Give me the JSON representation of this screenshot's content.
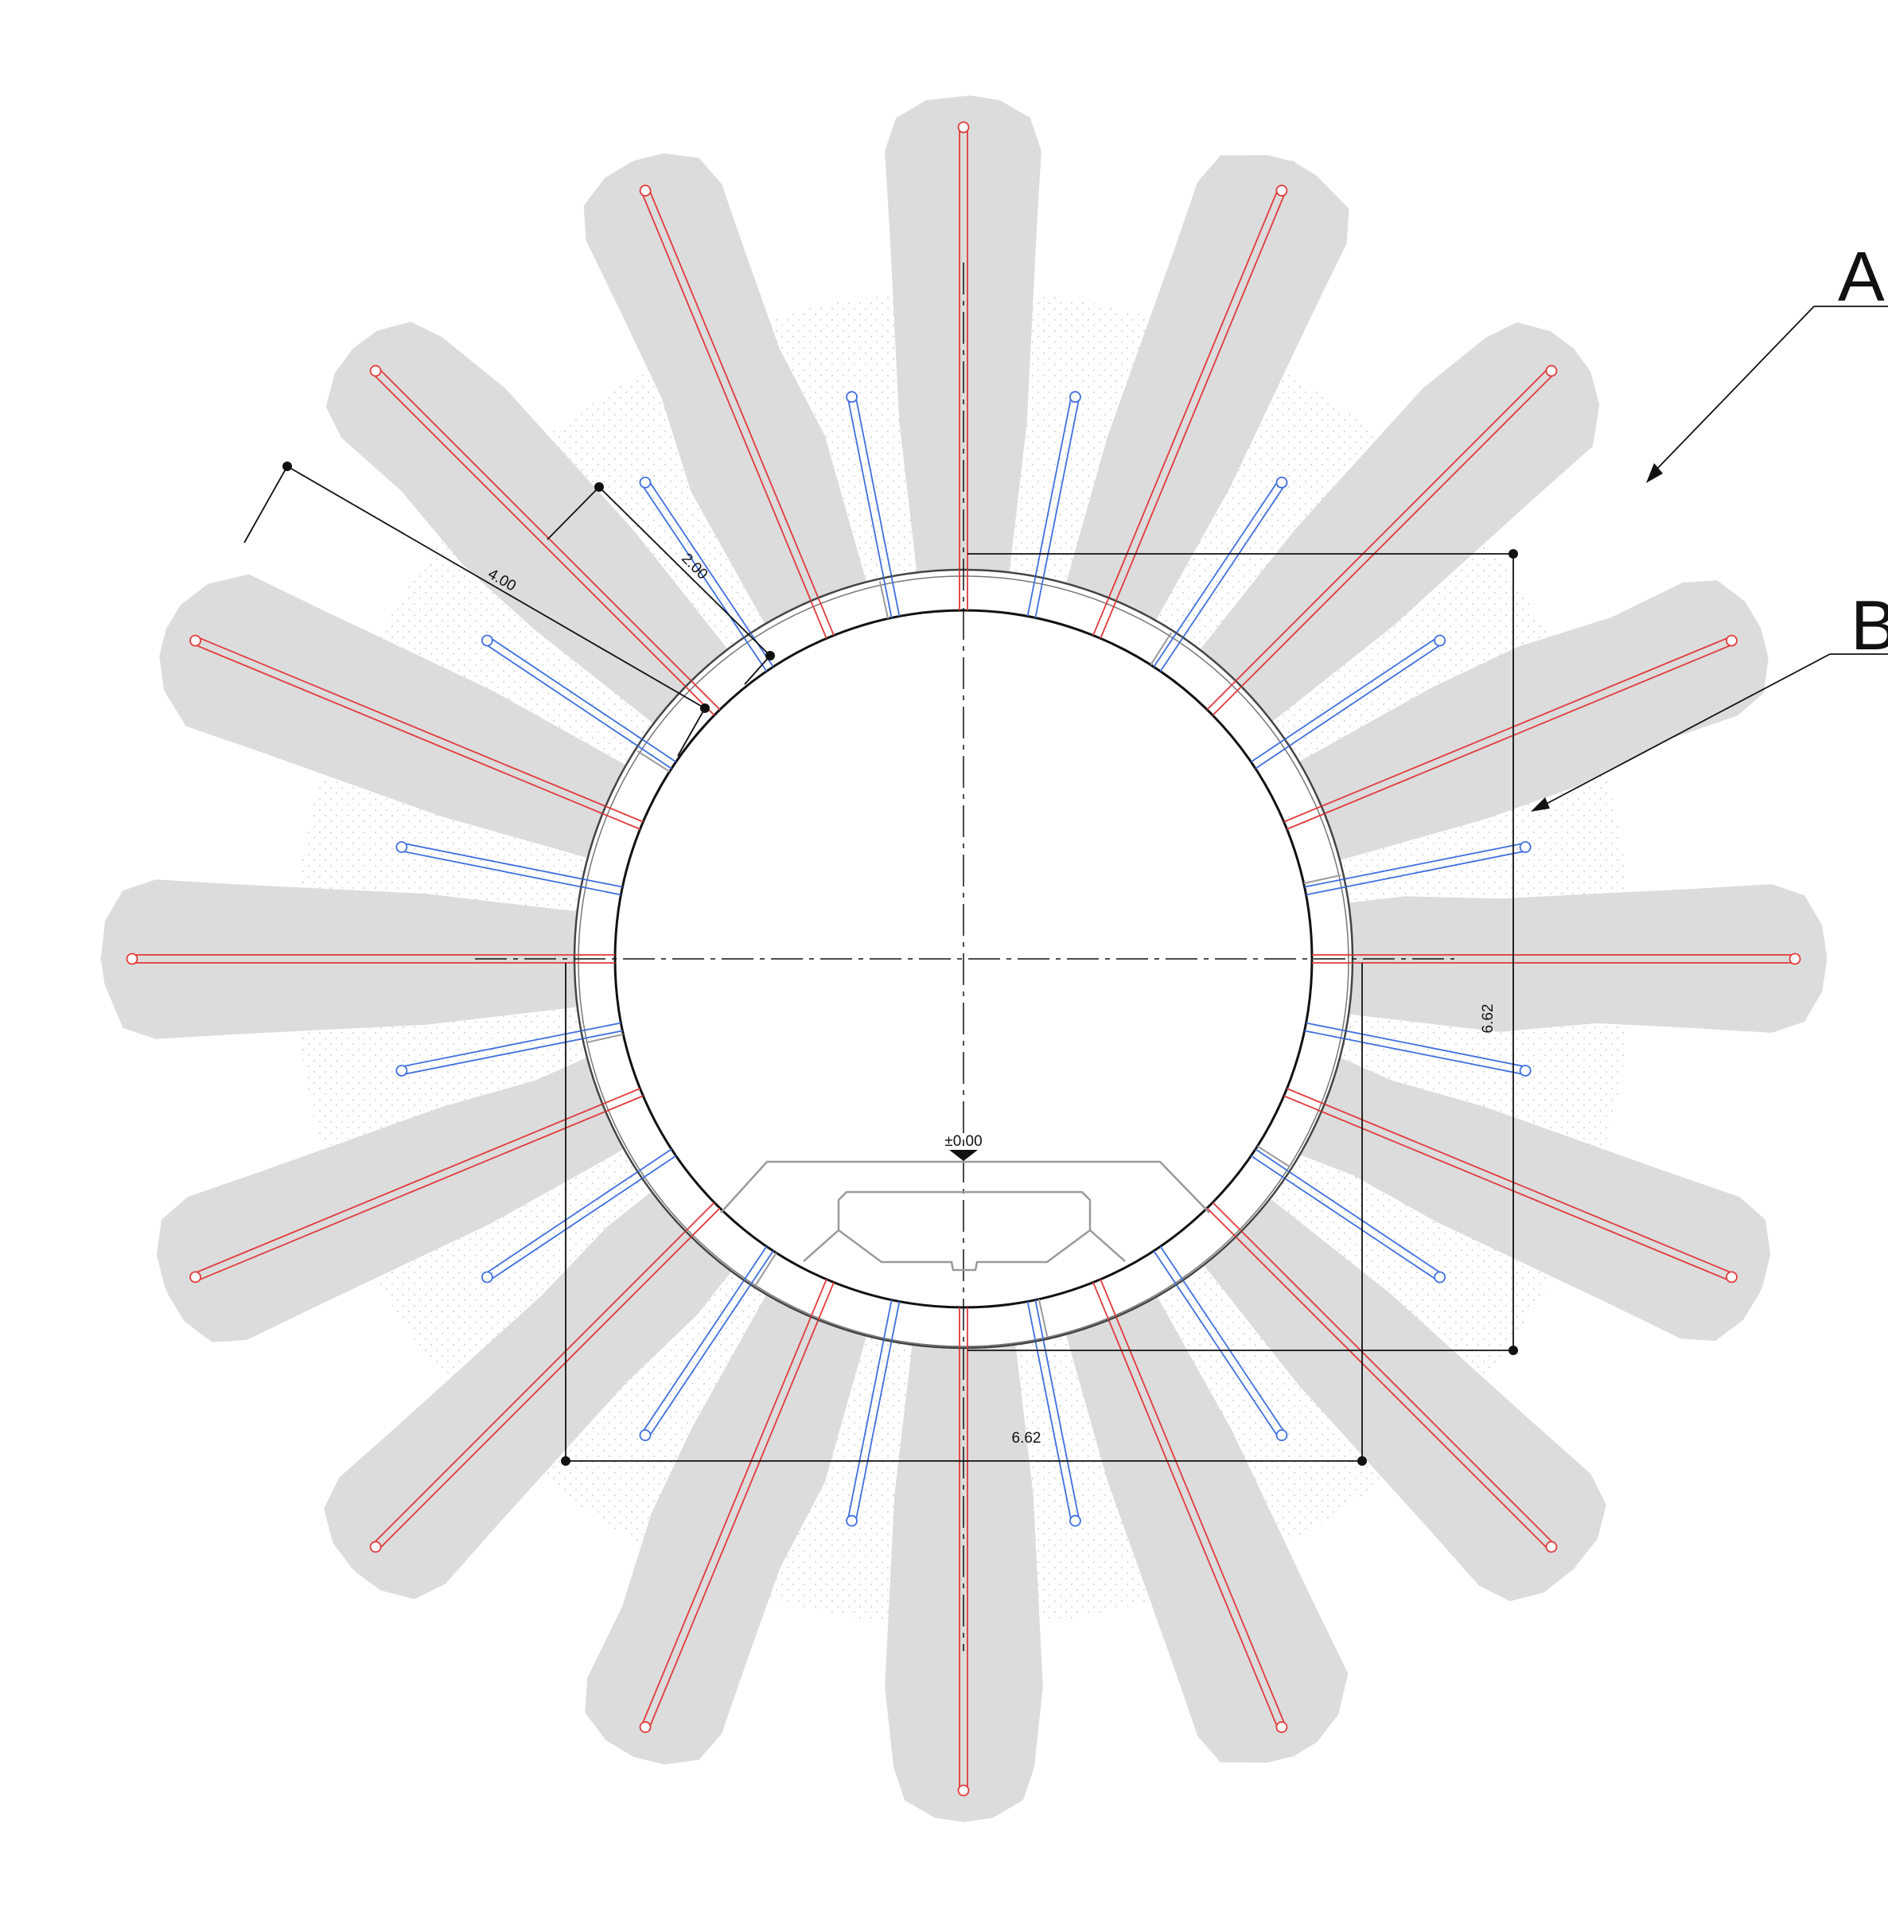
{
  "drawing": {
    "title": "",
    "colors": {
      "grout_zone": "#dcdcdc",
      "long_pipe": "#e23a3a",
      "short_pipe": "#3f6fe0",
      "lining": "#111111",
      "structure": "#9a9a9a",
      "dimension": "#111111",
      "stipple": "#b8b8b8"
    },
    "pipes": {
      "long_count": 16,
      "short_count": 16
    },
    "dimensions": {
      "long_pipe_length": "4.00",
      "short_pipe_length": "2.00",
      "vertical_extent": "6.62",
      "horizontal_extent": "6.62"
    },
    "elevation_label": "±0.00",
    "leaders": {
      "a": "A",
      "b": "B"
    }
  }
}
